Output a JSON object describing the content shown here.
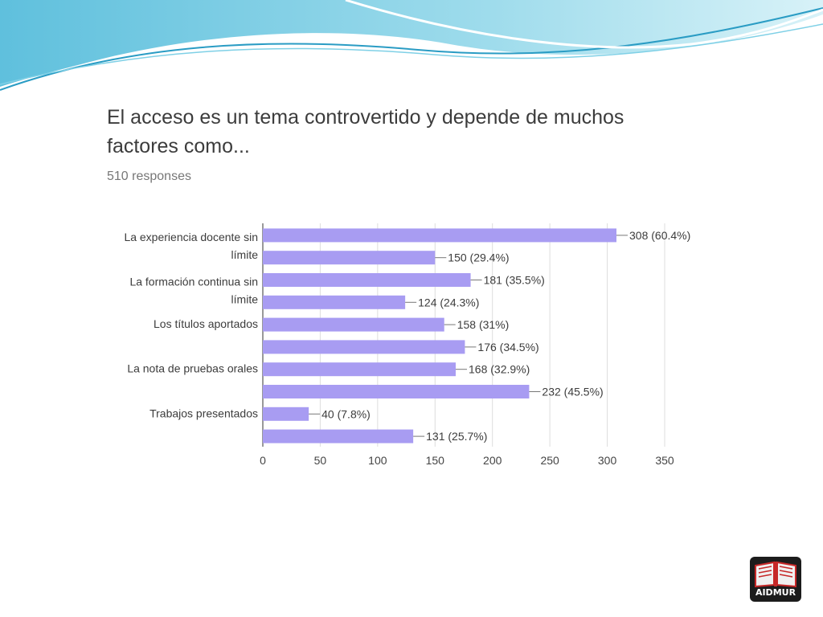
{
  "slide": {
    "logo_text": "AIDMUR"
  },
  "chart_data": {
    "type": "bar",
    "orientation": "horizontal",
    "title": "El acceso es un tema controvertido y depende de muchos factores como...",
    "subtitle": "510 responses",
    "categories": [
      "La experiencia docente sin límite",
      "",
      "La formación continua sin límite",
      "",
      "Los títulos aportados",
      "",
      "La nota de pruebas orales",
      "",
      "Trabajos presentados",
      ""
    ],
    "values": [
      308,
      150,
      181,
      124,
      158,
      176,
      168,
      232,
      40,
      131
    ],
    "value_labels": [
      "308 (60.4%)",
      "150 (29.4%)",
      "181 (35.5%)",
      "124 (24.3%)",
      "158 (31%)",
      "176 (34.5%)",
      "168 (32.9%)",
      "232 (45.5%)",
      "40 (7.8%)",
      "131 (25.7%)"
    ],
    "xlim": [
      0,
      350
    ],
    "xticks": [
      "0",
      "50",
      "100",
      "150",
      "200",
      "250",
      "300",
      "350"
    ],
    "grid": true,
    "bar_color": "#a89cf2",
    "text_color": "#3c3c3c"
  }
}
